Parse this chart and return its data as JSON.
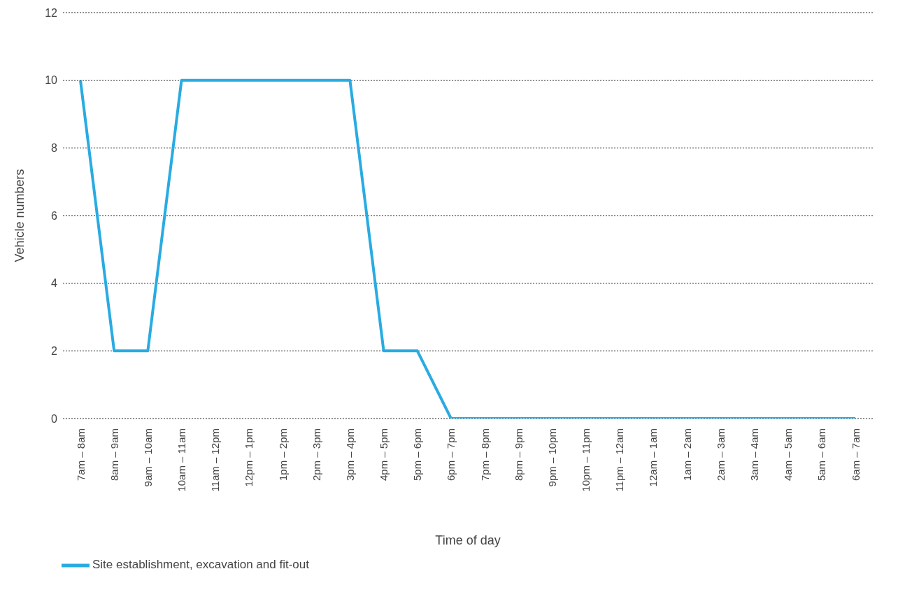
{
  "chart_data": {
    "type": "line",
    "xlabel": "Time of day",
    "ylabel": "Vehicle numbers",
    "categories": [
      "7am – 8am",
      "8am – 9am",
      "9am – 10am",
      "10am – 11am",
      "11am – 12pm",
      "12pm – 1pm",
      "1pm – 2pm",
      "2pm – 3pm",
      "3pm – 4pm",
      "4pm – 5pm",
      "5pm – 6pm",
      "6pm – 7pm",
      "7pm – 8pm",
      "8pm – 9pm",
      "9pm – 10pm",
      "10pm – 11pm",
      "11pm – 12am",
      "12am – 1am",
      "1am – 2am",
      "2am – 3am",
      "3am – 4am",
      "4am – 5am",
      "5am – 6am",
      "6am – 7am"
    ],
    "series": [
      {
        "name": "Site establishment, excavation and fit-out",
        "color": "#29abe2",
        "values": [
          10,
          2,
          2,
          10,
          10,
          10,
          10,
          10,
          10,
          2,
          2,
          0,
          0,
          0,
          0,
          0,
          0,
          0,
          0,
          0,
          0,
          0,
          0,
          0
        ]
      }
    ],
    "ylim": [
      0,
      12
    ],
    "yticks": [
      0,
      2,
      4,
      6,
      8,
      10,
      12
    ],
    "grid": "y",
    "legend": "bottom left",
    "marker": "none",
    "line_style": "solid"
  }
}
